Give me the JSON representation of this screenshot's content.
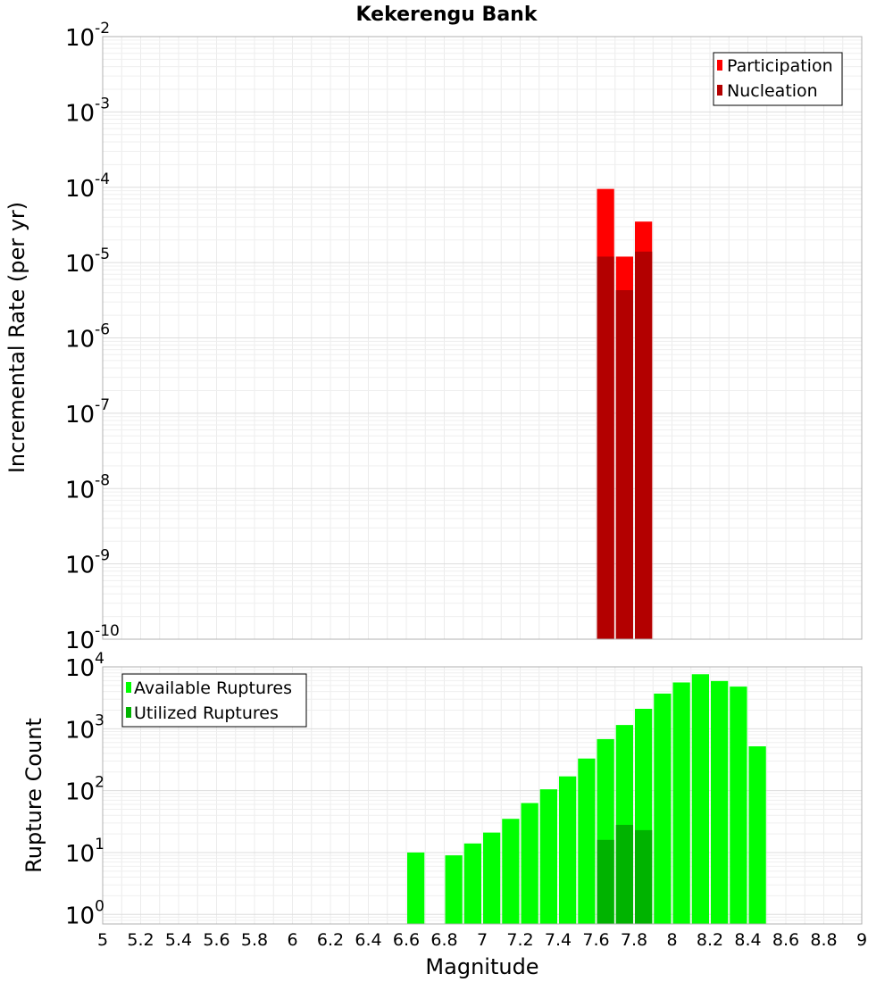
{
  "title": "Kekerengu Bank",
  "chart_data": [
    {
      "type": "bar",
      "ylabel": "Incremental Rate (per yr)",
      "xlabel": "",
      "xlim": [
        5,
        9
      ],
      "ylim": [
        1e-10,
        0.01
      ],
      "yscale": "log",
      "grid": true,
      "legend_position": "top-right",
      "bar_width": 0.1,
      "x": [
        7.65,
        7.75,
        7.85
      ],
      "series": [
        {
          "name": "Participation",
          "color": "#ff0000",
          "values": [
            9.5e-05,
            1.2e-05,
            3.5e-05
          ]
        },
        {
          "name": "Nucleation",
          "color": "#b30000",
          "values": [
            1.2e-05,
            4.3e-06,
            1.4e-05
          ]
        }
      ],
      "ytick_labels": [
        {
          "base": "10",
          "exp": "-2"
        },
        {
          "base": "10",
          "exp": "-3"
        },
        {
          "base": "10",
          "exp": "-4"
        },
        {
          "base": "10",
          "exp": "-5"
        },
        {
          "base": "10",
          "exp": "-6"
        },
        {
          "base": "10",
          "exp": "-7"
        },
        {
          "base": "10",
          "exp": "-8"
        },
        {
          "base": "10",
          "exp": "-9"
        },
        {
          "base": "10",
          "exp": "-10"
        }
      ]
    },
    {
      "type": "bar",
      "ylabel": "Rupture Count",
      "xlabel": "Magnitude",
      "xlim": [
        5,
        9
      ],
      "ylim": [
        0.7,
        10000
      ],
      "yscale": "log",
      "grid": true,
      "legend_position": "top-left",
      "bar_width": 0.1,
      "x": [
        6.65,
        6.75,
        6.85,
        6.95,
        7.05,
        7.15,
        7.25,
        7.35,
        7.45,
        7.55,
        7.65,
        7.75,
        7.85,
        7.95,
        8.05,
        8.15,
        8.25,
        8.35,
        8.45
      ],
      "series": [
        {
          "name": "Available Ruptures",
          "color": "#00ff00",
          "values": [
            10,
            null,
            9,
            14,
            21,
            35,
            63,
            105,
            170,
            330,
            680,
            1150,
            2100,
            3700,
            5600,
            7600,
            5900,
            4800,
            520
          ]
        },
        {
          "name": "Utilized Ruptures",
          "color": "#00b300",
          "values": [
            null,
            null,
            null,
            null,
            null,
            null,
            null,
            null,
            null,
            null,
            16,
            28,
            23,
            null,
            null,
            null,
            null,
            null,
            null
          ]
        }
      ],
      "xtick_labels": [
        "5",
        "5.2",
        "5.4",
        "5.6",
        "5.8",
        "6",
        "6.2",
        "6.4",
        "6.6",
        "6.8",
        "7",
        "7.2",
        "7.4",
        "7.6",
        "7.8",
        "8",
        "8.2",
        "8.4",
        "8.6",
        "8.8",
        "9"
      ],
      "ytick_labels": [
        {
          "base": "10",
          "exp": "4"
        },
        {
          "base": "10",
          "exp": "3"
        },
        {
          "base": "10",
          "exp": "2"
        },
        {
          "base": "10",
          "exp": "1"
        },
        {
          "base": "10",
          "exp": "0"
        }
      ]
    }
  ]
}
